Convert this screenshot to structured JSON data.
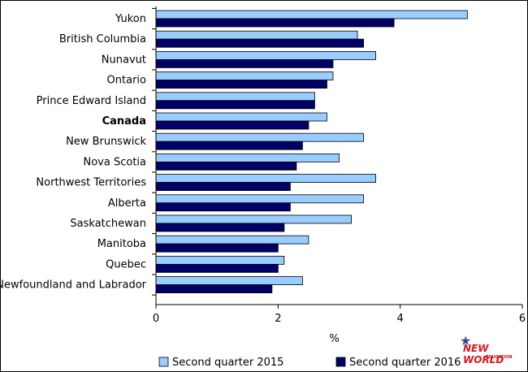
{
  "chart_data": {
    "type": "bar",
    "orientation": "horizontal",
    "categories": [
      "Yukon",
      "British Columbia",
      "Nunavut",
      "Ontario",
      "Prince Edward Island",
      "Canada",
      "New Brunswick",
      "Nova Scotia",
      "Northwest Territories",
      "Alberta",
      "Saskatchewan",
      "Manitoba",
      "Quebec",
      "Newfoundland and Labrador"
    ],
    "bold_categories": [
      "Canada"
    ],
    "series": [
      {
        "name": "Second quarter 2015",
        "color": "#99ccff",
        "values": [
          5.1,
          3.3,
          3.6,
          2.9,
          2.6,
          2.8,
          3.4,
          3.0,
          3.6,
          3.4,
          3.2,
          2.5,
          2.1,
          2.4
        ]
      },
      {
        "name": "Second quarter 2016",
        "color": "#000066",
        "values": [
          3.9,
          3.4,
          2.9,
          2.8,
          2.6,
          2.5,
          2.4,
          2.3,
          2.2,
          2.2,
          2.1,
          2.0,
          2.0,
          1.9
        ]
      }
    ],
    "xlabel": "%",
    "xlim": [
      0,
      6
    ],
    "xticks": [
      "0",
      "2",
      "4",
      "6"
    ],
    "grid": false,
    "legend_position": "bottom"
  },
  "watermark": {
    "text": "NEW WORLD",
    "subtext": "EDUCATION",
    "icon": "star-icon"
  }
}
